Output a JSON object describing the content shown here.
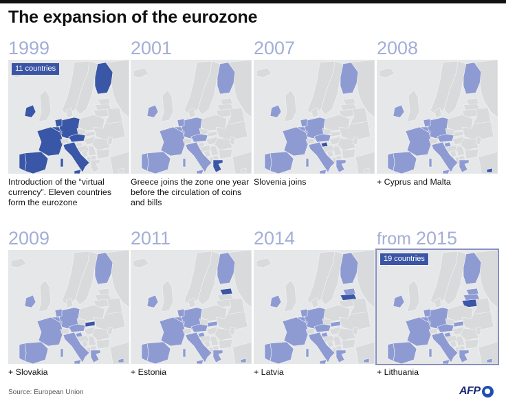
{
  "title": "The expansion of the eurozone",
  "source": "Source: European Union",
  "logo": "AFP",
  "colors": {
    "new_member": "#3a56a7",
    "existing_member": "#8e9bd3",
    "non_member": "#d9dadc",
    "sea": "#e6e7e9",
    "year_text": "#a4aed6"
  },
  "panels": [
    {
      "prefix": "",
      "year": "1999",
      "badge": "11 countries",
      "caption": "Introduction of the “virtual currency”. Eleven countries form the eurozone"
    },
    {
      "prefix": "",
      "year": "2001",
      "badge": "",
      "caption": "Greece joins the zone one year before the circulation of coins and bills"
    },
    {
      "prefix": "",
      "year": "2007",
      "badge": "",
      "caption": "Slovenia joins"
    },
    {
      "prefix": "",
      "year": "2008",
      "badge": "",
      "caption": "+ Cyprus and Malta"
    },
    {
      "prefix": "",
      "year": "2009",
      "badge": "",
      "caption": "+ Slovakia"
    },
    {
      "prefix": "",
      "year": "2011",
      "badge": "",
      "caption": "+ Estonia"
    },
    {
      "prefix": "",
      "year": "2014",
      "badge": "",
      "caption": "+ Latvia"
    },
    {
      "prefix": "from ",
      "year": "2015",
      "badge": "19 countries",
      "caption": "+ Lithuania"
    }
  ],
  "chart_data": {
    "type": "map",
    "title": "The expansion of the eurozone",
    "members_by_year": [
      {
        "year": "1999",
        "count": 11,
        "new": [
          "Austria",
          "Belgium",
          "Finland",
          "France",
          "Germany",
          "Ireland",
          "Italy",
          "Luxembourg",
          "Netherlands",
          "Portugal",
          "Spain"
        ]
      },
      {
        "year": "2001",
        "new": [
          "Greece"
        ]
      },
      {
        "year": "2007",
        "new": [
          "Slovenia"
        ]
      },
      {
        "year": "2008",
        "new": [
          "Cyprus",
          "Malta"
        ]
      },
      {
        "year": "2009",
        "new": [
          "Slovakia"
        ]
      },
      {
        "year": "2011",
        "new": [
          "Estonia"
        ]
      },
      {
        "year": "2014",
        "new": [
          "Latvia"
        ]
      },
      {
        "year": "2015",
        "count": 19,
        "new": [
          "Lithuania"
        ]
      }
    ]
  }
}
